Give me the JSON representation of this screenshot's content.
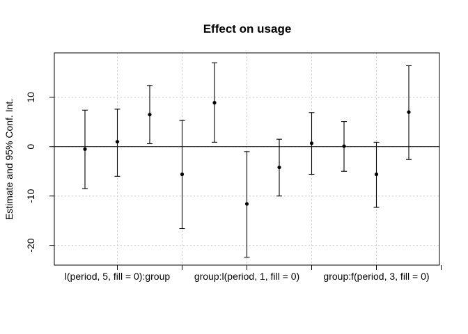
{
  "chart_data": {
    "type": "scatter",
    "title": "Effect on usage",
    "xlabel": "",
    "ylabel": "Estimate and 95% Conf. Int.",
    "ylim": [
      -24,
      19
    ],
    "y_ticks": [
      10,
      0,
      -10,
      -20
    ],
    "y_tick_labels": [
      "10",
      "0",
      "-10",
      "-20"
    ],
    "grid": true,
    "reference_line": 0,
    "x_tick_labels": [
      "l(period, 5, fill = 0):group",
      "",
      "group:l(period, 1, fill = 0)",
      "",
      "group:f(period, 3, fill = 0)",
      ""
    ],
    "points": [
      {
        "estimate": -0.5,
        "lower": -8.5,
        "upper": 7.4
      },
      {
        "estimate": 1.0,
        "lower": -6.0,
        "upper": 7.6
      },
      {
        "estimate": 6.5,
        "lower": 0.6,
        "upper": 12.4
      },
      {
        "estimate": -5.6,
        "lower": -16.6,
        "upper": 5.3
      },
      {
        "estimate": 8.9,
        "lower": 0.9,
        "upper": 17.0
      },
      {
        "estimate": -11.6,
        "lower": -22.4,
        "upper": -1.0
      },
      {
        "estimate": -4.2,
        "lower": -10.0,
        "upper": 1.5
      },
      {
        "estimate": 0.7,
        "lower": -5.6,
        "upper": 6.9
      },
      {
        "estimate": 0.1,
        "lower": -5.0,
        "upper": 5.1
      },
      {
        "estimate": -5.6,
        "lower": -12.3,
        "upper": 0.9
      },
      {
        "estimate": 7.0,
        "lower": -2.6,
        "upper": 16.4
      }
    ]
  }
}
